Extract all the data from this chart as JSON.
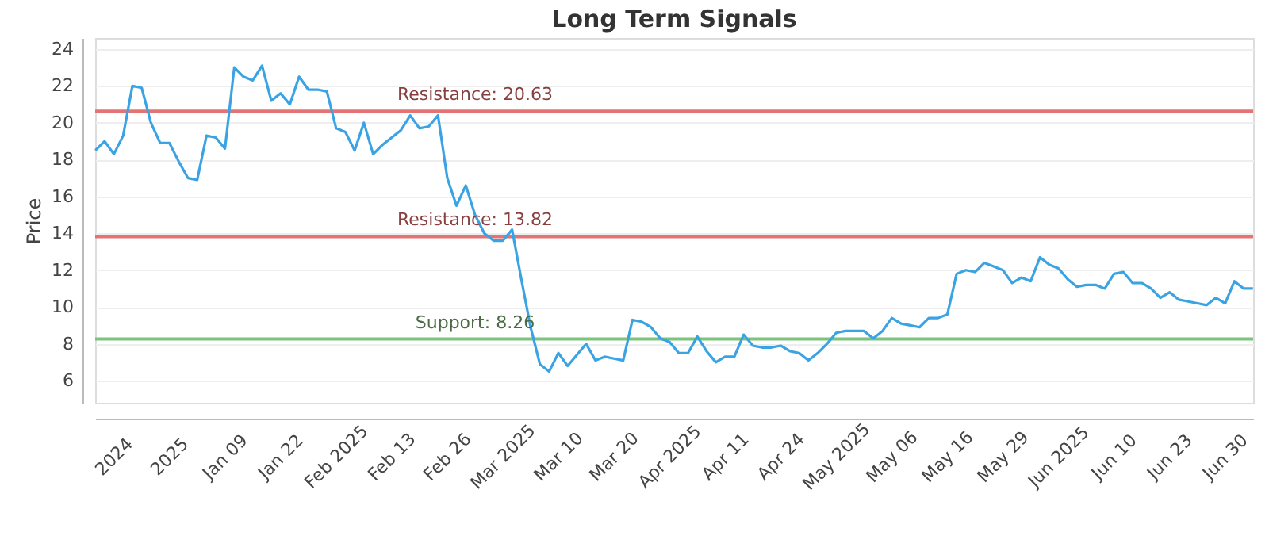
{
  "chart_data": {
    "type": "line",
    "title": "Long Term Signals",
    "ylabel": "Price",
    "categories": [
      null,
      null,
      "2024",
      null,
      null,
      null,
      null,
      null,
      "2025",
      null,
      null,
      null,
      null,
      null,
      "Jan 09",
      null,
      null,
      null,
      null,
      null,
      "Jan 22",
      null,
      null,
      null,
      null,
      null,
      "Feb 2025",
      null,
      null,
      null,
      null,
      null,
      "Feb 13",
      null,
      null,
      null,
      null,
      null,
      "Feb 26",
      null,
      null,
      null,
      null,
      null,
      "Mar 2025",
      null,
      null,
      null,
      null,
      null,
      "Mar 10",
      null,
      null,
      null,
      null,
      null,
      "Mar 20",
      null,
      null,
      null,
      null,
      null,
      "Apr 2025",
      null,
      null,
      null,
      null,
      null,
      "Apr 11",
      null,
      null,
      null,
      null,
      null,
      "Apr 24",
      null,
      null,
      null,
      null,
      null,
      "May 2025",
      null,
      null,
      null,
      null,
      null,
      "May 06",
      null,
      null,
      null,
      null,
      null,
      "May 16",
      null,
      null,
      null,
      null,
      null,
      "May 29",
      null,
      null,
      null,
      null,
      null,
      "Jun 2025",
      null,
      null,
      null,
      null,
      null,
      "Jun 10",
      null,
      null,
      null,
      null,
      null,
      "Jun 23",
      null,
      null,
      null,
      null,
      null,
      "Jun 30",
      null,
      null,
      null
    ],
    "series": [
      {
        "color": "#3aa3e3",
        "values": [
          18.5,
          19.0,
          18.3,
          19.3,
          22.0,
          21.9,
          20.0,
          18.9,
          18.9,
          17.9,
          17.0,
          16.9,
          19.3,
          19.2,
          18.6,
          23.0,
          22.5,
          22.3,
          23.1,
          21.2,
          21.6,
          21.0,
          22.5,
          21.8,
          21.8,
          21.7,
          19.7,
          19.5,
          18.5,
          20.0,
          18.3,
          18.8,
          19.2,
          19.6,
          20.4,
          19.7,
          19.8,
          20.4,
          17.0,
          15.5,
          16.6,
          15.0,
          14.0,
          13.6,
          13.6,
          14.2,
          11.5,
          8.9,
          6.9,
          6.5,
          7.5,
          6.8,
          7.4,
          8.0,
          7.1,
          7.3,
          7.2,
          7.1,
          9.3,
          9.2,
          8.9,
          8.3,
          8.1,
          7.5,
          7.5,
          8.4,
          7.6,
          7.0,
          7.3,
          7.3,
          8.5,
          7.9,
          7.8,
          7.8,
          7.9,
          7.6,
          7.5,
          7.1,
          7.5,
          8.0,
          8.6,
          8.7,
          8.7,
          8.7,
          8.3,
          8.7,
          9.4,
          9.1,
          9.0,
          8.9,
          9.4,
          9.4,
          9.6,
          11.8,
          12.0,
          11.9,
          12.4,
          12.2,
          12.0,
          11.3,
          11.6,
          11.4,
          12.7,
          12.3,
          12.1,
          11.5,
          11.1,
          11.2,
          11.2,
          11.0,
          11.8,
          11.9,
          11.3,
          11.3,
          11.0,
          10.5,
          10.8,
          10.4,
          10.3,
          10.2,
          10.1,
          10.5,
          10.2,
          11.4,
          11.0,
          11.0
        ]
      }
    ],
    "ylim": [
      4.8,
      24.6
    ],
    "yticks": [
      6,
      8,
      10,
      12,
      14,
      16,
      18,
      20,
      22,
      24
    ],
    "grid": "y",
    "marker": "none",
    "line_style": "solid",
    "ref_lines": [
      {
        "axis": "y",
        "value": 20.63,
        "label": "Resistance: 20.63",
        "color": "#e57373"
      },
      {
        "axis": "y",
        "value": 13.82,
        "label": "Resistance: 13.82",
        "color": "#e57373"
      },
      {
        "axis": "y",
        "value": 8.26,
        "label": "Support: 8.26",
        "color": "#7cc47c"
      }
    ]
  }
}
